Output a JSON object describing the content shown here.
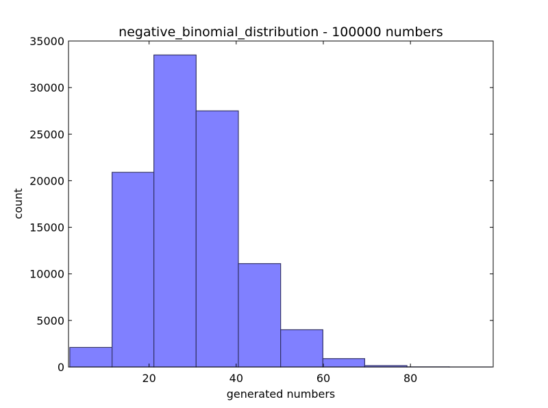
{
  "chart_data": {
    "type": "bar",
    "title": "negative_binomial_distribution - 100000 numbers",
    "xlabel": "generated numbers",
    "ylabel": "count",
    "xlim": [
      1.5,
      99
    ],
    "ylim": [
      0,
      35000
    ],
    "xticks": [
      20,
      40,
      60,
      80
    ],
    "yticks": [
      0,
      5000,
      10000,
      15000,
      20000,
      25000,
      30000,
      35000
    ],
    "grid": false,
    "bar_color": "#8080ff",
    "bar_edge_color": "#333366",
    "bins": [
      {
        "start": 1.8,
        "end": 11.5,
        "count": 2100
      },
      {
        "start": 11.5,
        "end": 21.1,
        "count": 20900
      },
      {
        "start": 21.1,
        "end": 30.8,
        "count": 33500
      },
      {
        "start": 30.8,
        "end": 40.5,
        "count": 27500
      },
      {
        "start": 40.5,
        "end": 50.2,
        "count": 11100
      },
      {
        "start": 50.2,
        "end": 59.9,
        "count": 4000
      },
      {
        "start": 59.9,
        "end": 69.5,
        "count": 900
      },
      {
        "start": 69.5,
        "end": 79.2,
        "count": 150
      },
      {
        "start": 79.2,
        "end": 88.9,
        "count": 15
      },
      {
        "start": 88.9,
        "end": 98.6,
        "count": 2
      }
    ]
  }
}
